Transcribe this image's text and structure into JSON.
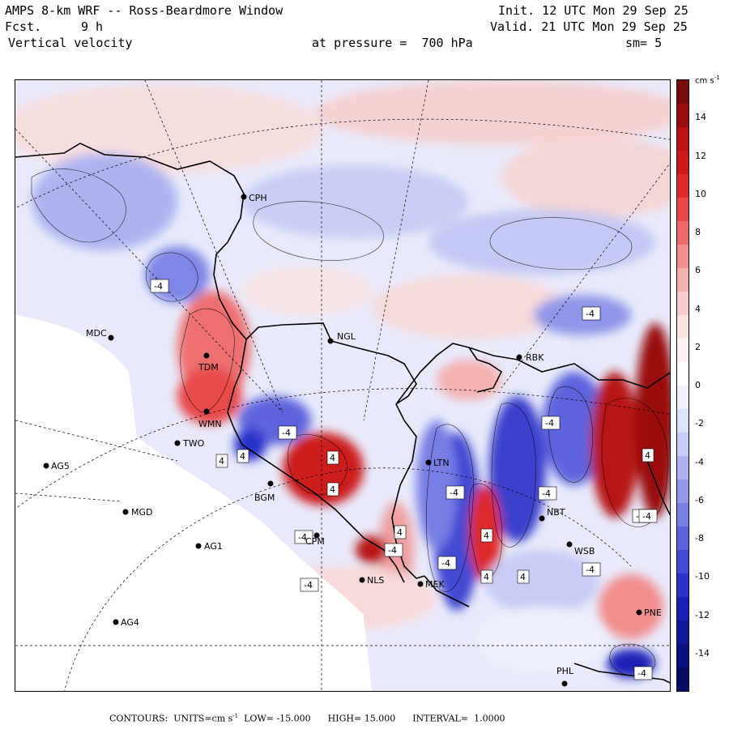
{
  "header": {
    "title": "AMPS 8-km WRF -- Ross-Beardmore Window",
    "fcst_label": "Fcst.",
    "fcst_value": "9 h",
    "variable": "Vertical velocity",
    "level": "at pressure =  700 hPa",
    "init": "Init. 12 UTC Mon 29 Sep 25",
    "valid": "Valid. 21 UTC Mon 29 Sep 25",
    "smoothing": "sm= 5"
  },
  "colorbar": {
    "units_label": "cm s",
    "units_exp": "-1",
    "min": -16,
    "max": 16,
    "tick_labels": [
      "14",
      "12",
      "10",
      "8",
      "6",
      "4",
      "2",
      "0",
      "-2",
      "-4",
      "-6",
      "-8",
      "-10",
      "-12",
      "-14"
    ],
    "tick_values": [
      14,
      12,
      10,
      8,
      6,
      4,
      2,
      0,
      -2,
      -4,
      -6,
      -8,
      -10,
      -12,
      -14
    ],
    "colors_top_to_bottom": [
      "#7a0b0b",
      "#9a1010",
      "#b81414",
      "#cc1a1a",
      "#dd2a2a",
      "#e84848",
      "#ee6a6a",
      "#f28e8e",
      "#f5b0b0",
      "#f8cccc",
      "#fbe3e3",
      "#fdf1f1",
      "#ffffff",
      "#f0f1fd",
      "#dfe2fb",
      "#c8ccf6",
      "#aeb3f0",
      "#9298ea",
      "#787ee4",
      "#5d63dc",
      "#4249d3",
      "#2b33ca",
      "#1a20b6",
      "#12189a",
      "#0c1180",
      "#080c66"
    ]
  },
  "stations": [
    {
      "name": "CPH"
    },
    {
      "name": "MDC"
    },
    {
      "name": "NGL"
    },
    {
      "name": "TDM"
    },
    {
      "name": "WMN"
    },
    {
      "name": "TWO"
    },
    {
      "name": "AG5"
    },
    {
      "name": "MGD"
    },
    {
      "name": "AG1"
    },
    {
      "name": "AG4"
    },
    {
      "name": "BGM"
    },
    {
      "name": "CPM"
    },
    {
      "name": "NLS"
    },
    {
      "name": "MEK"
    },
    {
      "name": "LTN"
    },
    {
      "name": "NBT"
    },
    {
      "name": "WSB"
    },
    {
      "name": "PNE"
    },
    {
      "name": "PHL"
    },
    {
      "name": "RBK"
    }
  ],
  "contour_labels": [
    "-4",
    "-4",
    "4",
    "4",
    "-4",
    "4",
    "-4",
    "4",
    "4",
    "4",
    "-4",
    "-4",
    "-4",
    "-4",
    "-4",
    "-4",
    "-4",
    "4",
    "4",
    "4",
    "-4",
    "-4",
    "-4"
  ],
  "footer": {
    "contours": "CONTOURS:",
    "units": "UNITS=cm s",
    "units_exp": "-1",
    "low": "LOW= -15.000",
    "high": "HIGH= 15.000",
    "interval": "INTERVAL=  1.0000"
  }
}
